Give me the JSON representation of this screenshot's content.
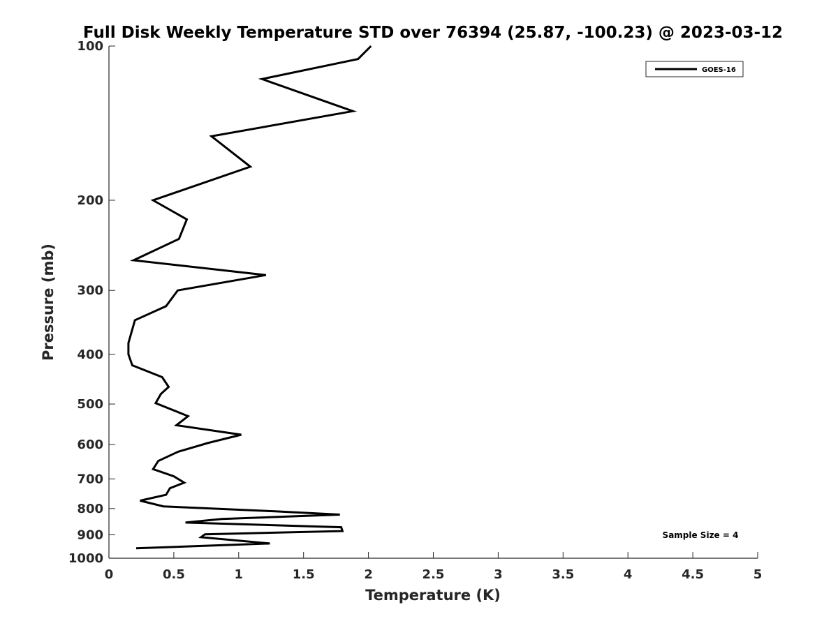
{
  "chart_data": {
    "type": "line",
    "title": "Full Disk Weekly Temperature STD over 76394 (25.87, -100.23) @ 2023-03-12",
    "xlabel": "Temperature (K)",
    "ylabel": "Pressure (mb)",
    "xlim": [
      0,
      5
    ],
    "ylim": [
      100,
      1000
    ],
    "y_scale": "log",
    "y_reversed": true,
    "grid": false,
    "legend_position": "top-right",
    "x_ticks": [
      "0",
      "0.5",
      "1",
      "1.5",
      "2",
      "2.5",
      "3",
      "3.5",
      "4",
      "4.5",
      "5"
    ],
    "y_ticks": [
      "100",
      "200",
      "300",
      "400",
      "500",
      "600",
      "700",
      "800",
      "900",
      "1000"
    ],
    "series": [
      {
        "name": "GOES-16",
        "color": "#000000",
        "x": [
          2.02,
          1.92,
          1.18,
          1.88,
          0.79,
          1.09,
          0.34,
          0.6,
          0.54,
          0.19,
          1.21,
          0.53,
          0.44,
          0.2,
          0.15,
          0.15,
          0.18,
          0.41,
          0.46,
          0.4,
          0.36,
          0.61,
          0.52,
          1.02,
          0.76,
          0.53,
          0.38,
          0.34,
          0.5,
          0.58,
          0.47,
          0.44,
          0.24,
          0.42,
          1.28,
          1.78,
          0.87,
          0.59,
          1.79,
          1.8,
          0.74,
          0.71,
          1.24,
          0.21
        ],
        "y": [
          100,
          106,
          116,
          134,
          150,
          172,
          200,
          218,
          238,
          262,
          280,
          300,
          322,
          343,
          380,
          400,
          420,
          443,
          463,
          478,
          498,
          528,
          550,
          574,
          596,
          620,
          646,
          670,
          692,
          712,
          730,
          752,
          772,
          792,
          810,
          822,
          838,
          852,
          870,
          885,
          898,
          910,
          936,
          956
        ]
      }
    ],
    "annotation": "Sample Size = 4"
  }
}
